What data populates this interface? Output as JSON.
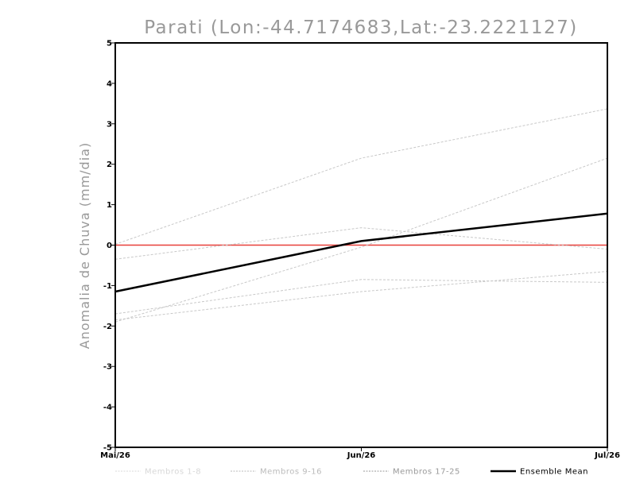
{
  "chart_data": {
    "type": "line",
    "title": "Parati (Lon:-44.7174683,Lat:-23.2221127)",
    "xlabel": "",
    "ylabel": "Anomalia de Chuva (mm/dia)",
    "categories": [
      "Mai/26",
      "Jun/26",
      "Jul/26"
    ],
    "ylim": [
      -5,
      5
    ],
    "yticks": [
      5,
      4,
      3,
      2,
      1,
      0,
      -1,
      -2,
      -3,
      -4,
      -5
    ],
    "ytick_labels": [
      "5",
      "4",
      "3",
      "2",
      "1",
      "0",
      "-1",
      "-2",
      "-3",
      "-4",
      "-5"
    ],
    "grid": false,
    "legend_position": "bottom",
    "reference_line": {
      "value": 0,
      "color": "#e8403a"
    },
    "member_color": "#c8c8c8",
    "mean_color": "#000000",
    "legend": [
      {
        "label": "Membros 1-8",
        "color": "#d8d8d8"
      },
      {
        "label": "Membros 9-16",
        "color": "#bbbbbb"
      },
      {
        "label": "Membros 17-25",
        "color": "#999999"
      },
      {
        "label": "Ensemble Mean",
        "color": "#000000"
      }
    ],
    "series": [
      {
        "values": [
          0.02,
          2.15,
          3.37
        ]
      },
      {
        "values": [
          -0.35,
          0.43,
          -0.1
        ]
      },
      {
        "values": [
          -1.9,
          -0.05,
          2.15
        ]
      },
      {
        "values": [
          -1.7,
          -0.85,
          -0.92
        ]
      },
      {
        "values": [
          -1.85,
          -1.15,
          -0.65
        ]
      },
      {
        "name": "Ensemble Mean",
        "values": [
          -1.15,
          0.1,
          0.78
        ],
        "is_mean": true
      }
    ]
  }
}
